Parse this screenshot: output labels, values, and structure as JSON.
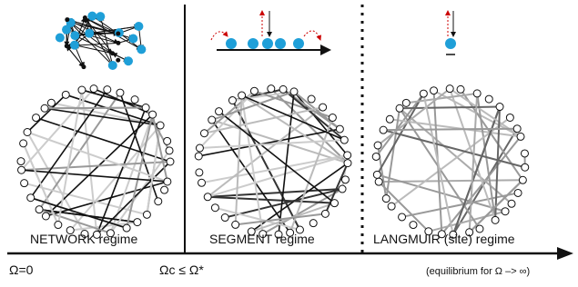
{
  "panels": [
    {
      "label": "NETWORK regime"
    },
    {
      "label": "SEGMENT regime"
    },
    {
      "label": "LANGMUIR (site) regime"
    }
  ],
  "axis": {
    "start": "Ω=0",
    "middle": "Ωc ≤ Ω*",
    "end": "(equilibrium for Ω –> ∞)"
  }
}
